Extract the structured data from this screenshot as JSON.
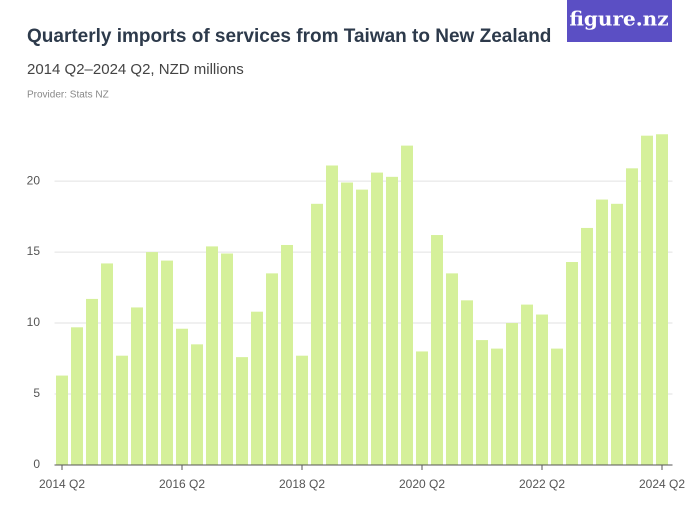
{
  "logo": "figure.nz",
  "chart_data": {
    "type": "bar",
    "title": "Quarterly imports of services from Taiwan to New Zealand",
    "subtitle": "2014 Q2–2024 Q2, NZD millions",
    "source": "Provider: Stats NZ",
    "categories": [
      "2014 Q2",
      null,
      null,
      null,
      null,
      null,
      null,
      null,
      "2016 Q2",
      null,
      null,
      null,
      null,
      null,
      null,
      null,
      "2018 Q2",
      null,
      null,
      null,
      null,
      null,
      null,
      null,
      "2020 Q2",
      null,
      null,
      null,
      null,
      null,
      null,
      null,
      "2022 Q2",
      null,
      null,
      null,
      null,
      null,
      null,
      null,
      "2024 Q2"
    ],
    "values": [
      6.3,
      9.7,
      11.7,
      14.2,
      7.7,
      11.1,
      15.0,
      14.4,
      9.6,
      8.5,
      15.4,
      14.9,
      7.6,
      10.8,
      13.5,
      15.5,
      7.7,
      18.4,
      21.1,
      19.9,
      19.4,
      20.6,
      20.3,
      22.5,
      8.0,
      16.2,
      13.5,
      11.6,
      8.8,
      8.2,
      10.0,
      11.3,
      10.6,
      8.2,
      14.3,
      16.7,
      18.7,
      18.4,
      20.9,
      23.2,
      23.3
    ],
    "color": "#d5f09a",
    "ylim": [
      0,
      23.6
    ],
    "yticks": [
      0,
      5,
      10,
      15,
      20
    ],
    "grid": true
  }
}
